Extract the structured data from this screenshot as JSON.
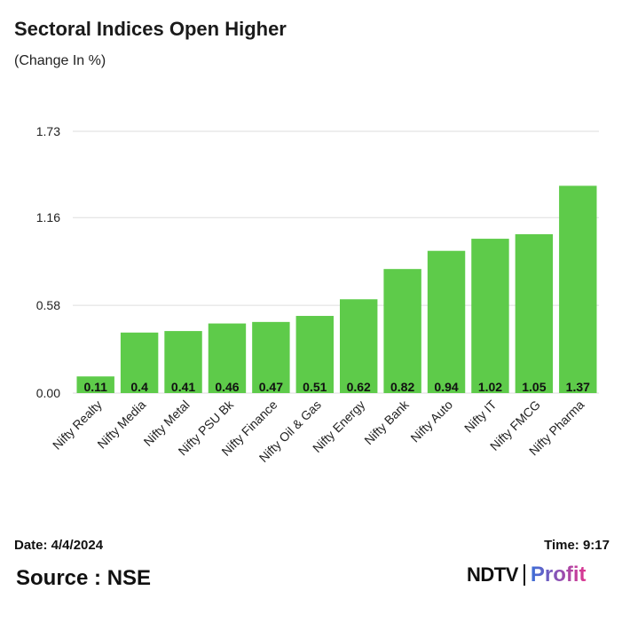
{
  "header": {
    "title": "Sectoral Indices Open Higher",
    "subtitle": "(Change In %)"
  },
  "footer": {
    "date": "Date: 4/4/2024",
    "time": "Time: 9:17",
    "source": "Source : NSE",
    "logo_ndtv": "NDTV",
    "logo_profit": "Profit"
  },
  "colors": {
    "bar": "#5ecb4a",
    "grid": "#dddddd",
    "logo_profit_start": "#3b6fd8",
    "logo_profit_end": "#e0358f"
  },
  "chart_data": {
    "type": "bar",
    "title": "Sectoral Indices Open Higher",
    "subtitle": "(Change In %)",
    "categories": [
      "Nifty Realty",
      "Nifty Media",
      "Nifty Metal",
      "Nifty PSU Bk",
      "Nifty Finance",
      "Nifty Oil & Gas",
      "Nifty Energy",
      "Nifty Bank",
      "Nifty Auto",
      "Nifty IT",
      "Nifty FMCG",
      "Nifty Pharma"
    ],
    "values": [
      0.11,
      0.4,
      0.41,
      0.46,
      0.47,
      0.51,
      0.62,
      0.82,
      0.94,
      1.02,
      1.05,
      1.37
    ],
    "value_labels": [
      "0.11",
      "0.4",
      "0.41",
      "0.46",
      "0.47",
      "0.51",
      "0.62",
      "0.82",
      "0.94",
      "1.02",
      "1.05",
      "1.37"
    ],
    "yticks": [
      0.0,
      0.58,
      1.16,
      1.73
    ],
    "ytick_labels": [
      "0.00",
      "0.58",
      "1.16",
      "1.73"
    ],
    "ylim": [
      0,
      1.73
    ],
    "xlabel": "",
    "ylabel": "",
    "grid": true
  }
}
